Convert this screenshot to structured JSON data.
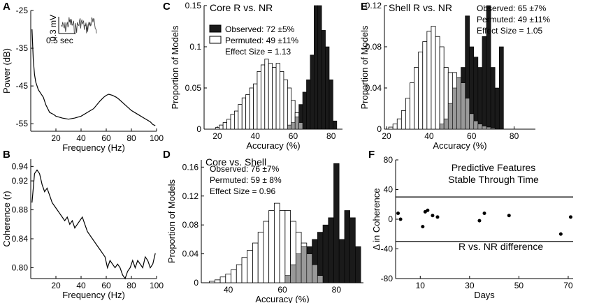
{
  "figure_panels": [
    "A",
    "B",
    "C",
    "D",
    "E",
    "F"
  ],
  "chart_data": [
    {
      "panel": "A",
      "type": "line",
      "xlabel": "Frequency (Hz)",
      "ylabel": "Power (dB)",
      "xlim": [
        0,
        100
      ],
      "ylim": [
        -57,
        -25
      ],
      "xticks": [
        20,
        40,
        60,
        80,
        100
      ],
      "yticks": [
        -25,
        -35,
        -45,
        -55
      ],
      "x": [
        1,
        2,
        3,
        4,
        5,
        6,
        8,
        10,
        12,
        15,
        18,
        20,
        25,
        30,
        35,
        40,
        45,
        50,
        55,
        58,
        60,
        62,
        65,
        68,
        70,
        75,
        80,
        85,
        90,
        95,
        97,
        99
      ],
      "y": [
        -30,
        -38,
        -42,
        -44,
        -45,
        -46,
        -47,
        -48,
        -50,
        -52,
        -52.5,
        -53,
        -53.5,
        -53.8,
        -53.5,
        -53,
        -52,
        -51,
        -49,
        -48,
        -47.5,
        -47.2,
        -47.5,
        -48,
        -48.5,
        -50,
        -51.5,
        -52.5,
        -53.5,
        -54.5,
        -55.2,
        -55.5
      ],
      "inset": {
        "scale_voltage": "0.3 mV",
        "scale_time": "0.5 sec"
      }
    },
    {
      "panel": "B",
      "type": "line",
      "xlabel": "Frequency (Hz)",
      "ylabel": "Coherence (r)",
      "xlim": [
        0,
        100
      ],
      "ylim": [
        0.785,
        0.95
      ],
      "xticks": [
        20,
        40,
        60,
        80,
        100
      ],
      "yticks": [
        0.8,
        0.84,
        0.88,
        0.92,
        0.94
      ],
      "ytick_labels": [
        "0.80",
        "0.84",
        "0.88",
        "0.92",
        "0.94"
      ],
      "x": [
        1,
        3,
        5,
        7,
        9,
        11,
        13,
        15,
        17,
        19,
        21,
        23,
        25,
        27,
        29,
        31,
        33,
        35,
        37,
        39,
        41,
        43,
        45,
        47,
        49,
        51,
        53,
        55,
        57,
        59,
        61,
        63,
        65,
        67,
        69,
        71,
        73,
        75,
        77,
        79,
        81,
        83,
        85,
        87,
        89,
        91,
        93,
        95,
        97,
        99
      ],
      "y": [
        0.89,
        0.93,
        0.935,
        0.93,
        0.915,
        0.905,
        0.91,
        0.9,
        0.89,
        0.885,
        0.88,
        0.875,
        0.87,
        0.865,
        0.87,
        0.86,
        0.865,
        0.855,
        0.86,
        0.865,
        0.87,
        0.86,
        0.85,
        0.845,
        0.84,
        0.835,
        0.83,
        0.825,
        0.82,
        0.815,
        0.8,
        0.81,
        0.805,
        0.8,
        0.805,
        0.8,
        0.79,
        0.785,
        0.795,
        0.8,
        0.81,
        0.8,
        0.81,
        0.805,
        0.8,
        0.815,
        0.81,
        0.8,
        0.805,
        0.82
      ]
    },
    {
      "panel": "C",
      "type": "bar",
      "title": "Core R vs. NR",
      "xlabel": "Accuracy (%)",
      "ylabel": "Proportion of Models",
      "xlim": [
        13,
        86
      ],
      "ylim": [
        0,
        0.15
      ],
      "xticks": [
        20,
        40,
        60,
        80
      ],
      "yticks": [
        0,
        0.05,
        0.1,
        0.15
      ],
      "ytick_labels": [
        "0",
        "0.05",
        "0.1",
        "0.15"
      ],
      "bin_width": 2,
      "series": [
        {
          "name": "Permuted: 49 ±11%",
          "color": "#ffffff",
          "x": [
            20,
            22,
            24,
            26,
            28,
            30,
            32,
            34,
            36,
            38,
            40,
            42,
            44,
            46,
            48,
            50,
            52,
            54,
            56,
            58,
            60,
            62,
            64
          ],
          "values": [
            0.002,
            0.005,
            0.008,
            0.012,
            0.018,
            0.022,
            0.03,
            0.038,
            0.042,
            0.05,
            0.055,
            0.07,
            0.078,
            0.085,
            0.08,
            0.075,
            0.08,
            0.07,
            0.06,
            0.05,
            0.035,
            0.02,
            0.008
          ]
        },
        {
          "name": "Observed: 72 ±5%",
          "color": "#1a1a1a",
          "x": [
            58,
            60,
            62,
            64,
            66,
            68,
            70,
            72,
            74,
            76,
            78,
            80,
            82
          ],
          "values": [
            0.005,
            0.008,
            0.015,
            0.03,
            0.045,
            0.06,
            0.09,
            0.15,
            0.15,
            0.12,
            0.1,
            0.06,
            0.01
          ]
        }
      ],
      "annotations": [
        "Effect Size = 1.13"
      ]
    },
    {
      "panel": "D",
      "type": "bar",
      "title": "Core vs. Shell",
      "xlabel": "Accuracy (%)",
      "ylabel": "Proportion of Models",
      "xlim": [
        30,
        90
      ],
      "ylim": [
        0,
        0.17
      ],
      "xticks": [
        40,
        60,
        80
      ],
      "yticks": [
        0,
        0.04,
        0.08,
        0.12,
        0.16
      ],
      "ytick_labels": [
        "0",
        "0.04",
        "0.08",
        "0.12",
        "0.16"
      ],
      "bin_width": 2,
      "series": [
        {
          "name": "Permuted: 59 ± 8%",
          "color": "#ffffff",
          "x": [
            34,
            36,
            38,
            40,
            42,
            44,
            46,
            48,
            50,
            52,
            54,
            56,
            58,
            60,
            62,
            64,
            66,
            68,
            70,
            72,
            74
          ],
          "values": [
            0.002,
            0.004,
            0.008,
            0.012,
            0.018,
            0.025,
            0.035,
            0.045,
            0.055,
            0.07,
            0.085,
            0.1,
            0.11,
            0.1,
            0.1,
            0.085,
            0.07,
            0.055,
            0.04,
            0.025,
            0.01
          ]
        },
        {
          "name": "Observed: 76 ±7%",
          "color": "#1a1a1a",
          "x": [
            62,
            64,
            66,
            68,
            70,
            72,
            74,
            76,
            78,
            80,
            82,
            84,
            86,
            88
          ],
          "values": [
            0.01,
            0.025,
            0.04,
            0.05,
            0.05,
            0.06,
            0.07,
            0.08,
            0.09,
            0.165,
            0.06,
            0.1,
            0.09,
            0.05
          ]
        }
      ],
      "annotations": [
        "Effect Size = 0.96"
      ]
    },
    {
      "panel": "E",
      "type": "bar",
      "title": "Shell R vs. NR",
      "xlabel": "Accuracy (%)",
      "ylabel": "Proportion of Models",
      "xlim": [
        19,
        90
      ],
      "ylim": [
        0,
        0.12
      ],
      "xticks": [
        20,
        40,
        60,
        80
      ],
      "yticks": [
        0,
        0.04,
        0.08,
        0.12
      ],
      "ytick_labels": [
        "0",
        "0.04",
        "0.08",
        "0.12"
      ],
      "bin_width": 2,
      "series": [
        {
          "name": "Permuted: 49 ±11%",
          "color": "#ffffff",
          "x": [
            22,
            24,
            26,
            28,
            30,
            32,
            34,
            36,
            38,
            40,
            42,
            44,
            46,
            48,
            50,
            52,
            54,
            56,
            58,
            60,
            62,
            64,
            66,
            68,
            70
          ],
          "values": [
            0.002,
            0.005,
            0.01,
            0.018,
            0.03,
            0.045,
            0.06,
            0.075,
            0.085,
            0.095,
            0.1,
            0.09,
            0.08,
            0.06,
            0.055,
            0.055,
            0.05,
            0.045,
            0.03,
            0.015,
            0.008,
            0.005,
            0.003,
            0.002,
            0.001
          ]
        },
        {
          "name": "Observed: 65 ±7%",
          "color": "#1a1a1a",
          "x": [
            46,
            48,
            50,
            52,
            54,
            56,
            58,
            60,
            62,
            64,
            66,
            68,
            70,
            72,
            74
          ],
          "values": [
            0.005,
            0.01,
            0.025,
            0.04,
            0.05,
            0.06,
            0.11,
            0.08,
            0.07,
            0.06,
            0.09,
            0.12,
            0.06,
            0.04,
            0.08
          ]
        }
      ],
      "annotations": [
        "Effect Size = 1.05"
      ]
    },
    {
      "panel": "F",
      "type": "scatter",
      "title": "Predictive Features\nStable Through Time",
      "title_lines": [
        "Predictive Features",
        "Stable Through Time"
      ],
      "xlabel": "Days",
      "ylabel": "Δ in Coherence",
      "xlim": [
        0,
        72
      ],
      "ylim": [
        -80,
        80
      ],
      "xticks": [
        10,
        30,
        50,
        70
      ],
      "yticks": [
        -80,
        -40,
        0,
        40,
        80
      ],
      "hlines": [
        30,
        -30
      ],
      "hline_label": "R vs. NR difference",
      "x": [
        1,
        2,
        11,
        12,
        13,
        15,
        17,
        34,
        36,
        46,
        67,
        71
      ],
      "y": [
        8,
        0,
        -10,
        10,
        12,
        5,
        3,
        -2,
        8,
        5,
        -20,
        3
      ]
    }
  ]
}
